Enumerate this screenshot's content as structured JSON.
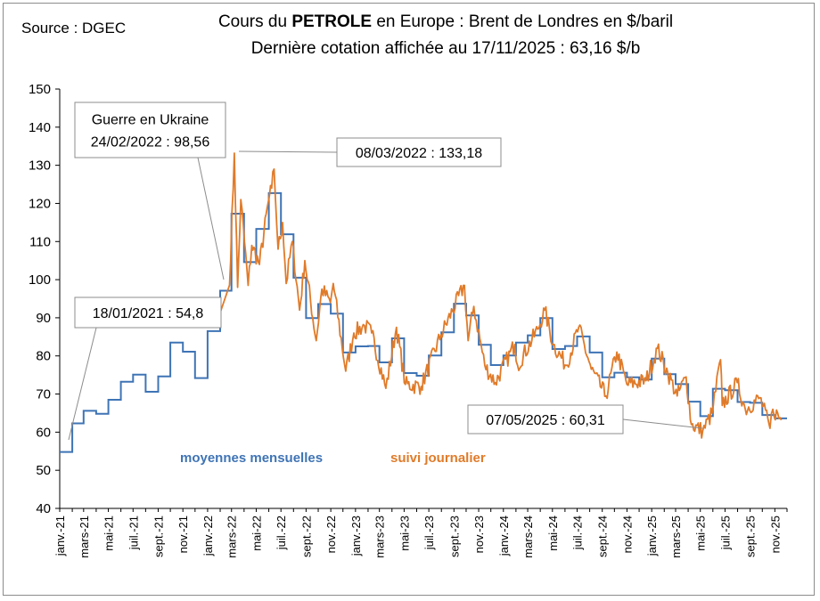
{
  "source": "Source : DGEC",
  "title": {
    "line1_pre": "Cours du ",
    "line1_bold": "PETROLE",
    "line1_post": " en Europe : Brent de Londres en $/baril",
    "line2": "Dernière cotation affichée au 17/11/2025 : 63,16 $/b"
  },
  "colors": {
    "monthly": "#3f74b5",
    "daily": "#e07b2a",
    "annotation_border": "#8c8c8c"
  },
  "chart_data": {
    "type": "line",
    "ylim": [
      40,
      150
    ],
    "yticks": [
      40,
      50,
      60,
      70,
      80,
      90,
      100,
      110,
      120,
      130,
      140,
      150
    ],
    "grid": false,
    "xtick_labels": [
      "janv.-21",
      "mars-21",
      "mai-21",
      "juil.-21",
      "sept.-21",
      "nov.-21",
      "janv.-22",
      "mars-22",
      "mai-22",
      "juil.-22",
      "sept.-22",
      "nov.-22",
      "janv.-23",
      "mars-23",
      "mai-23",
      "juil.-23",
      "sept.-23",
      "nov.-23",
      "janv.-24",
      "mars-24",
      "mai-24",
      "juil.-24",
      "sept.-24",
      "nov.-24",
      "janv.-25",
      "mars-25",
      "mai-25",
      "juil.-25",
      "sept.-25",
      "nov.-25"
    ],
    "series": [
      {
        "name": "moyennes mensuelles",
        "type": "step",
        "months": [
          "2021-01",
          "2021-02",
          "2021-03",
          "2021-04",
          "2021-05",
          "2021-06",
          "2021-07",
          "2021-08",
          "2021-09",
          "2021-10",
          "2021-11",
          "2021-12",
          "2022-01",
          "2022-02",
          "2022-03",
          "2022-04",
          "2022-05",
          "2022-06",
          "2022-07",
          "2022-08",
          "2022-09",
          "2022-10",
          "2022-11",
          "2022-12",
          "2023-01",
          "2023-02",
          "2023-03",
          "2023-04",
          "2023-05",
          "2023-06",
          "2023-07",
          "2023-08",
          "2023-09",
          "2023-10",
          "2023-11",
          "2023-12",
          "2024-01",
          "2024-02",
          "2024-03",
          "2024-04",
          "2024-05",
          "2024-06",
          "2024-07",
          "2024-08",
          "2024-09",
          "2024-10",
          "2024-11",
          "2024-12",
          "2025-01",
          "2025-02",
          "2025-03",
          "2025-04",
          "2025-05",
          "2025-06",
          "2025-07",
          "2025-08",
          "2025-09",
          "2025-10",
          "2025-11"
        ],
        "values": [
          54.8,
          62.3,
          65.6,
          64.8,
          68.5,
          73.2,
          75.1,
          70.6,
          74.6,
          83.5,
          81.1,
          74.2,
          86.5,
          97.1,
          117.3,
          104.6,
          113.3,
          122.7,
          111.9,
          100.5,
          89.9,
          93.6,
          91.1,
          80.9,
          82.5,
          82.6,
          78.3,
          84.6,
          75.5,
          74.8,
          80.1,
          86.2,
          93.7,
          90.6,
          82.9,
          77.6,
          80.1,
          83.5,
          85.4,
          89.9,
          81.8,
          82.6,
          85.1,
          80.9,
          74.4,
          75.6,
          74.4,
          73.8,
          79.3,
          75.2,
          72.6,
          68.0,
          64.2,
          71.4,
          71.0,
          67.9,
          67.7,
          64.5,
          63.6
        ]
      },
      {
        "name": "suivi journalier",
        "type": "line",
        "anchors": [
          [
            "2021-01-04",
            51.1
          ],
          [
            "2021-01-18",
            54.8
          ],
          [
            "2021-02-15",
            63.0
          ],
          [
            "2021-03-08",
            69.0
          ],
          [
            "2021-04-01",
            63.5
          ],
          [
            "2021-05-15",
            68.5
          ],
          [
            "2021-07-05",
            77.0
          ],
          [
            "2021-08-20",
            65.5
          ],
          [
            "2021-09-30",
            78.0
          ],
          [
            "2021-10-25",
            86.0
          ],
          [
            "2021-12-01",
            69.0
          ],
          [
            "2022-01-15",
            86.0
          ],
          [
            "2022-02-24",
            98.56
          ],
          [
            "2022-03-08",
            133.18
          ],
          [
            "2022-03-16",
            98.0
          ],
          [
            "2022-03-24",
            121.0
          ],
          [
            "2022-04-11",
            98.5
          ],
          [
            "2022-04-20",
            109.0
          ],
          [
            "2022-05-09",
            104.0
          ],
          [
            "2022-05-31",
            120.5
          ],
          [
            "2022-06-08",
            124.0
          ],
          [
            "2022-06-14",
            129.0
          ],
          [
            "2022-06-24",
            108.0
          ],
          [
            "2022-07-05",
            115.0
          ],
          [
            "2022-07-14",
            99.0
          ],
          [
            "2022-07-29",
            110.0
          ],
          [
            "2022-08-16",
            92.0
          ],
          [
            "2022-08-29",
            105.0
          ],
          [
            "2022-09-26",
            84.0
          ],
          [
            "2022-10-10",
            97.5
          ],
          [
            "2022-10-31",
            94.0
          ],
          [
            "2022-11-07",
            99.0
          ],
          [
            "2022-12-08",
            76.0
          ],
          [
            "2022-12-28",
            86.0
          ],
          [
            "2023-01-23",
            88.0
          ],
          [
            "2023-02-10",
            86.0
          ],
          [
            "2023-03-17",
            71.5
          ],
          [
            "2023-04-12",
            87.5
          ],
          [
            "2023-05-04",
            72.5
          ],
          [
            "2023-06-12",
            72.0
          ],
          [
            "2023-07-31",
            85.5
          ],
          [
            "2023-09-27",
            98.5
          ],
          [
            "2023-10-06",
            84.0
          ],
          [
            "2023-10-20",
            93.0
          ],
          [
            "2023-11-16",
            77.5
          ],
          [
            "2023-12-12",
            73.0
          ],
          [
            "2024-01-29",
            83.0
          ],
          [
            "2024-02-05",
            77.5
          ],
          [
            "2024-03-26",
            87.0
          ],
          [
            "2024-04-12",
            92.0
          ],
          [
            "2024-05-03",
            83.0
          ],
          [
            "2024-06-04",
            77.5
          ],
          [
            "2024-07-05",
            87.5
          ],
          [
            "2024-08-05",
            76.5
          ],
          [
            "2024-09-10",
            69.5
          ],
          [
            "2024-10-07",
            81.0
          ],
          [
            "2024-11-01",
            72.5
          ],
          [
            "2024-12-18",
            73.5
          ],
          [
            "2025-01-15",
            82.0
          ],
          [
            "2025-02-10",
            75.5
          ],
          [
            "2025-03-05",
            69.5
          ],
          [
            "2025-03-27",
            74.5
          ],
          [
            "2025-04-09",
            62.0
          ],
          [
            "2025-05-07",
            60.31
          ],
          [
            "2025-05-30",
            65.0
          ],
          [
            "2025-06-20",
            79.0
          ],
          [
            "2025-06-24",
            67.0
          ],
          [
            "2025-07-31",
            73.0
          ],
          [
            "2025-08-20",
            66.0
          ],
          [
            "2025-09-25",
            69.0
          ],
          [
            "2025-10-20",
            61.0
          ],
          [
            "2025-10-27",
            66.0
          ],
          [
            "2025-11-17",
            63.16
          ]
        ]
      }
    ],
    "legend": [
      {
        "label": "moyennes mensuelles",
        "color": "#3f74b5"
      },
      {
        "label": "suivi journalier",
        "color": "#e07b2a"
      }
    ],
    "annotations": [
      {
        "id": "ukraine",
        "lines": [
          "Guerre en Ukraine",
          "24/02/2022 : 98,56"
        ],
        "date": "2022-02-24",
        "value": 98.56
      },
      {
        "id": "peak",
        "lines": [
          "08/03/2022 : 133,18"
        ],
        "date": "2022-03-08",
        "value": 133.18
      },
      {
        "id": "jan21",
        "lines": [
          "18/01/2021 : 54,8"
        ],
        "date": "2021-01-18",
        "value": 54.8
      },
      {
        "id": "may25",
        "lines": [
          "07/05/2025 : 60,31"
        ],
        "date": "2025-05-07",
        "value": 60.31
      }
    ]
  }
}
